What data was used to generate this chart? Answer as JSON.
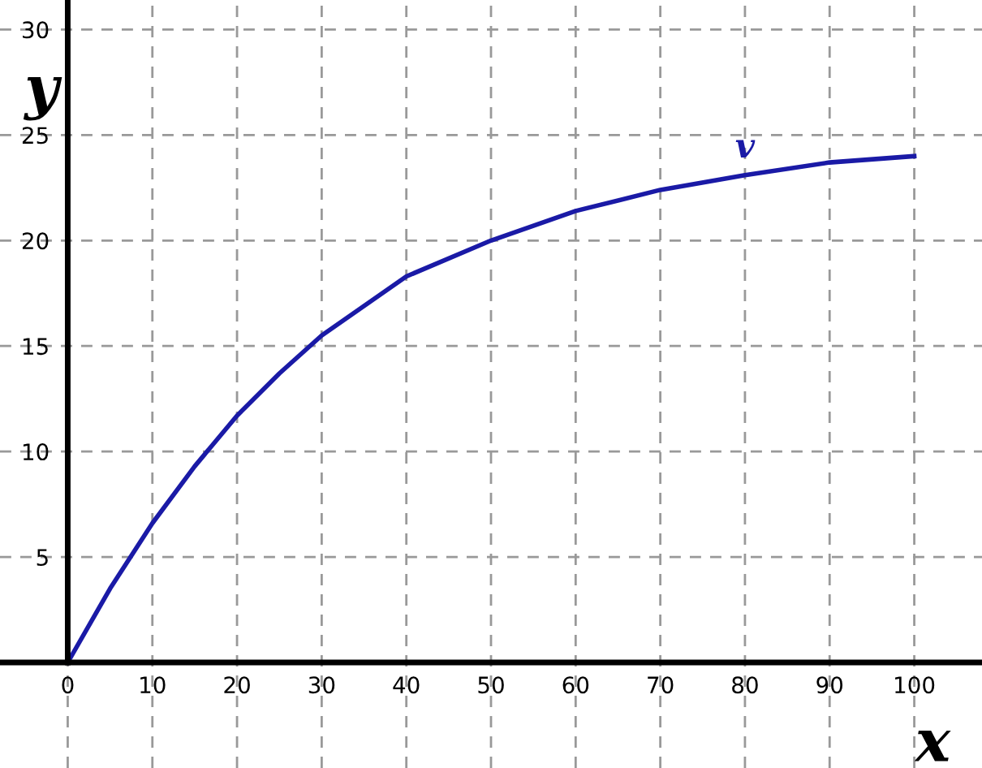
{
  "chart_data": {
    "type": "line",
    "xlabel": "x",
    "ylabel": "y",
    "x": [
      0,
      5,
      10,
      15,
      20,
      25,
      30,
      40,
      50,
      60,
      70,
      80,
      90,
      100
    ],
    "series": [
      {
        "name": "v",
        "color": "#1a1aa6",
        "values": [
          0,
          3.5,
          6.6,
          9.3,
          11.7,
          13.7,
          15.5,
          18.3,
          20.0,
          21.4,
          22.4,
          23.1,
          23.7,
          24.0
        ]
      }
    ],
    "xlim": [
      -8,
      108
    ],
    "ylim": [
      -5,
      31.4
    ],
    "xticks": [
      0,
      10,
      20,
      30,
      40,
      50,
      60,
      70,
      80,
      90,
      100
    ],
    "yticks": [
      5,
      10,
      15,
      20,
      25,
      30
    ],
    "grid": true,
    "marker": "none",
    "line_style": "solid"
  }
}
